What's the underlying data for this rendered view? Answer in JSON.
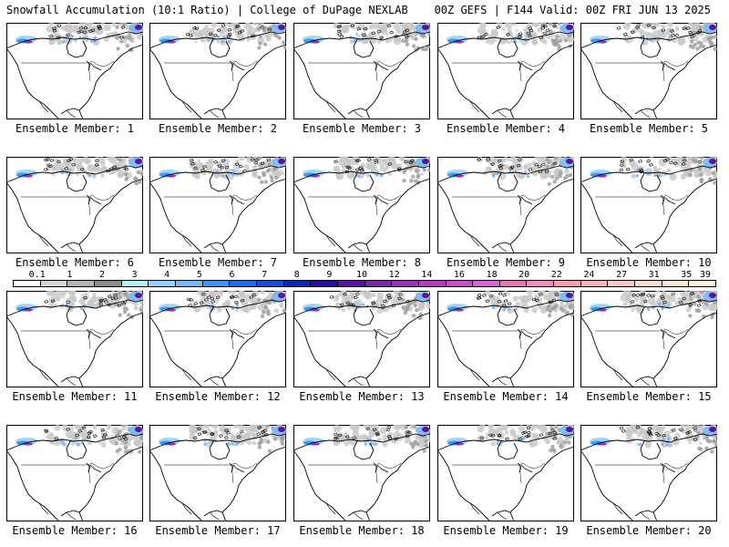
{
  "header": {
    "left_title": "Snowfall Accumulation (10:1 Ratio) | College of DuPage NEXLAB",
    "right_title": "00Z GEFS | F144 Valid: 00Z FRI JUN 13 2025"
  },
  "panels": [
    {
      "label": "Ensemble Member: 1"
    },
    {
      "label": "Ensemble Member: 2"
    },
    {
      "label": "Ensemble Member: 3"
    },
    {
      "label": "Ensemble Member: 4"
    },
    {
      "label": "Ensemble Member: 5"
    },
    {
      "label": "Ensemble Member: 6"
    },
    {
      "label": "Ensemble Member: 7"
    },
    {
      "label": "Ensemble Member: 8"
    },
    {
      "label": "Ensemble Member: 9"
    },
    {
      "label": "Ensemble Member: 10"
    },
    {
      "label": "Ensemble Member: 11"
    },
    {
      "label": "Ensemble Member: 12"
    },
    {
      "label": "Ensemble Member: 13"
    },
    {
      "label": "Ensemble Member: 14"
    },
    {
      "label": "Ensemble Member: 15"
    },
    {
      "label": "Ensemble Member: 16"
    },
    {
      "label": "Ensemble Member: 17"
    },
    {
      "label": "Ensemble Member: 18"
    },
    {
      "label": "Ensemble Member: 19"
    },
    {
      "label": "Ensemble Member: 20"
    }
  ],
  "legend": {
    "labels": [
      "0.1",
      "1",
      "2",
      "3",
      "4",
      "5",
      "6",
      "7",
      "8",
      "9",
      "10",
      "12",
      "14",
      "16",
      "18",
      "20",
      "22",
      "24",
      "27",
      "31",
      "35",
      "39"
    ],
    "colors": [
      "#ffffff",
      "#d6d6d6",
      "#b4b4b4",
      "#8c8c8c",
      "#b4f0f8",
      "#96d2fa",
      "#78b9fa",
      "#3c96f5",
      "#1e6eeb",
      "#1450d2",
      "#0f28b4",
      "#2d0fa0",
      "#5a14a0",
      "#7828aa",
      "#9632b4",
      "#b43cbe",
      "#c850c8",
      "#dc64d2",
      "#e678b4",
      "#f08cbe",
      "#f5a0aa",
      "#f8b4b4",
      "#fac8c8",
      "#fcdccc",
      "#fde6d2",
      "#fff0dc"
    ]
  }
}
